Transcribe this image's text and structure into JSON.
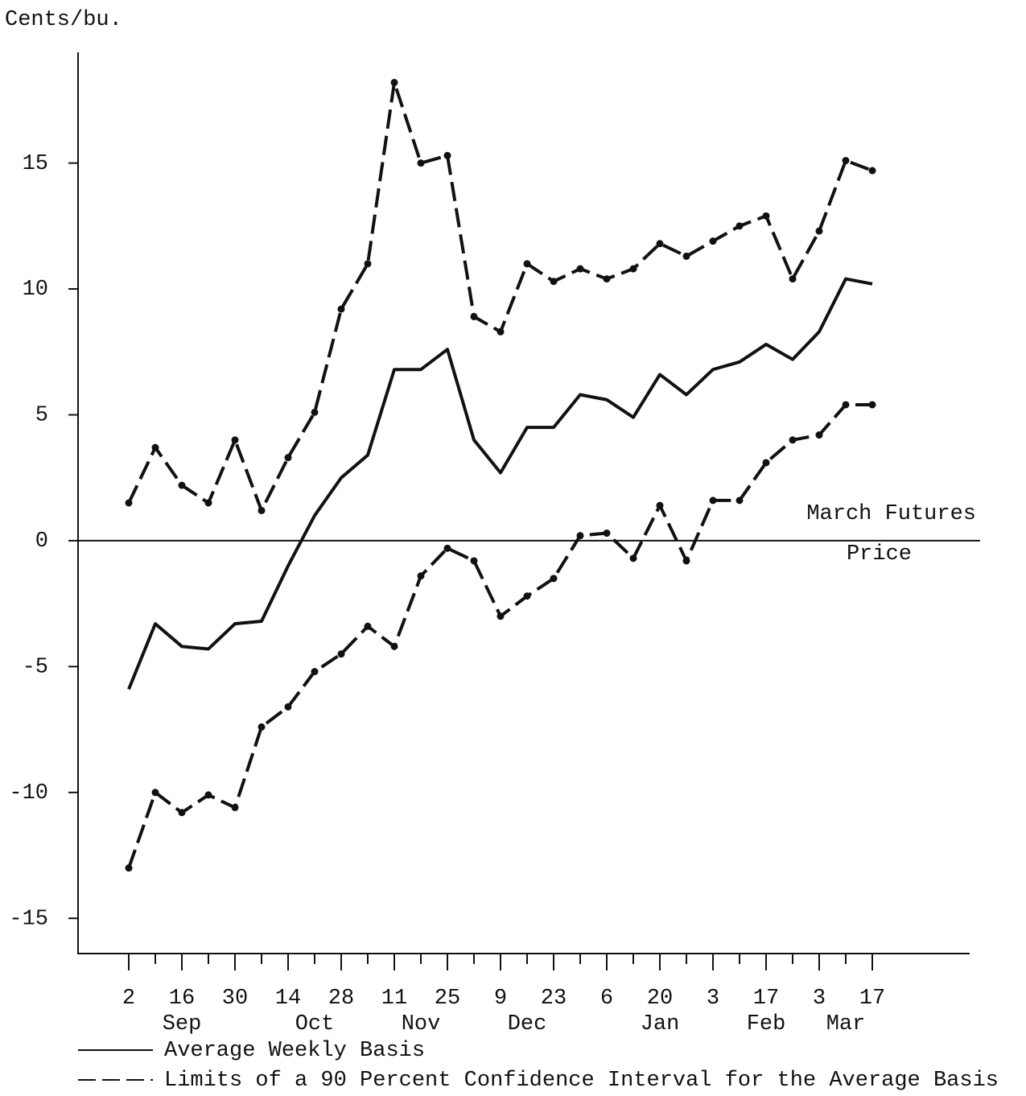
{
  "chart_data": {
    "type": "line",
    "y_label": "Cents/bu.",
    "categories": [
      "2",
      null,
      "16",
      null,
      "30",
      null,
      "14",
      null,
      "28",
      null,
      "11",
      null,
      "25",
      null,
      "9",
      null,
      "23",
      null,
      "6",
      null,
      "20",
      null,
      "3",
      null,
      "17",
      null,
      "3",
      null,
      "17"
    ],
    "months": [
      null,
      null,
      "Sep",
      null,
      null,
      null,
      null,
      "Oct",
      null,
      null,
      null,
      "Nov",
      null,
      null,
      null,
      "Dec",
      null,
      null,
      null,
      null,
      "Jan",
      null,
      null,
      null,
      "Feb",
      null,
      null,
      "Mar",
      null
    ],
    "ylim": [
      -16.4,
      19.4
    ],
    "yticks": [
      -15,
      -10,
      -5,
      0,
      5,
      10,
      15
    ],
    "reference_line": {
      "value": 0,
      "label_top": "March Futures",
      "label_bottom": "Price"
    },
    "series": [
      {
        "name": "Average Weekly Basis",
        "color": "#111111",
        "dashed": false,
        "values": [
          -5.9,
          -3.3,
          -4.2,
          -4.3,
          -3.3,
          -3.2,
          -1.0,
          1.0,
          2.5,
          3.4,
          6.8,
          6.8,
          7.6,
          4.0,
          2.7,
          4.5,
          4.5,
          5.8,
          5.6,
          4.9,
          6.6,
          5.8,
          6.8,
          7.1,
          7.8,
          7.2,
          8.3,
          10.4,
          10.2
        ]
      },
      {
        "name": "Limits of a 90 Percent Confidence Interval for the Average Basis",
        "color": "#111111",
        "dashed": true,
        "upper": [
          1.5,
          3.7,
          2.2,
          1.5,
          4.0,
          1.2,
          3.3,
          5.1,
          9.2,
          11.0,
          18.2,
          15.0,
          15.3,
          8.9,
          8.3,
          11.0,
          10.3,
          10.8,
          10.4,
          10.8,
          11.8,
          11.3,
          11.9,
          12.5,
          12.9,
          10.4,
          12.3,
          15.1,
          14.7
        ],
        "lower": [
          -13.0,
          -10.0,
          -10.8,
          -10.1,
          -10.6,
          -7.4,
          -6.6,
          -5.2,
          -4.5,
          -3.4,
          -4.2,
          -1.4,
          -0.3,
          -0.8,
          -3.0,
          -2.2,
          -1.5,
          0.2,
          0.3,
          -0.7,
          1.4,
          -0.8,
          1.6,
          1.6,
          3.1,
          4.0,
          4.2,
          5.4,
          5.4
        ]
      }
    ]
  }
}
